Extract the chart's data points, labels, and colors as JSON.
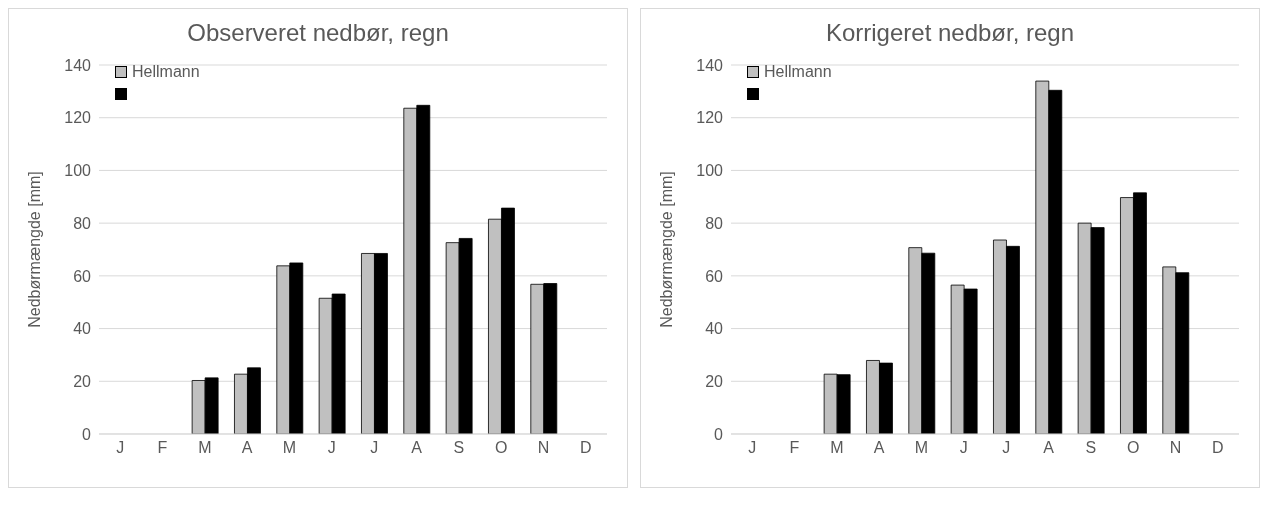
{
  "chart_data": [
    {
      "type": "bar",
      "title": "Observeret nedbør, regn",
      "ylabel": "Nedbørmængde [mm]",
      "categories": [
        "J",
        "F",
        "M",
        "A",
        "M",
        "J",
        "J",
        "A",
        "S",
        "O",
        "N",
        "D"
      ],
      "ylim": [
        0,
        140
      ],
      "yticks": [
        0,
        20,
        40,
        60,
        80,
        100,
        120,
        140
      ],
      "grid": "y",
      "legend": "top left",
      "series": [
        {
          "name": "Hellmann",
          "color": "#c0c0c0",
          "values": [
            null,
            null,
            20.3,
            22.7,
            63.8,
            51.5,
            68.5,
            123.6,
            72.6,
            81.5,
            56.8,
            null
          ]
        },
        {
          "color": "#000000",
          "values": [
            null,
            null,
            21.3,
            25.1,
            64.9,
            53.1,
            68.5,
            124.7,
            74.2,
            85.7,
            57.1,
            null
          ]
        }
      ]
    },
    {
      "type": "bar",
      "title": "Korrigeret nedbør, regn",
      "ylabel": "Nedbørmængde [mm]",
      "categories": [
        "J",
        "F",
        "M",
        "A",
        "M",
        "J",
        "J",
        "A",
        "S",
        "O",
        "N",
        "D"
      ],
      "ylim": [
        0,
        140
      ],
      "yticks": [
        0,
        20,
        40,
        60,
        80,
        100,
        120,
        140
      ],
      "grid": "y",
      "legend": "top left",
      "series": [
        {
          "name": "Hellmann",
          "color": "#c0c0c0",
          "values": [
            null,
            null,
            22.7,
            27.9,
            70.7,
            56.5,
            73.6,
            133.9,
            80.0,
            89.7,
            63.4,
            null
          ]
        },
        {
          "color": "#000000",
          "values": [
            null,
            null,
            22.5,
            26.9,
            68.6,
            55.0,
            71.2,
            130.4,
            78.3,
            91.5,
            61.2,
            null
          ]
        }
      ]
    }
  ]
}
